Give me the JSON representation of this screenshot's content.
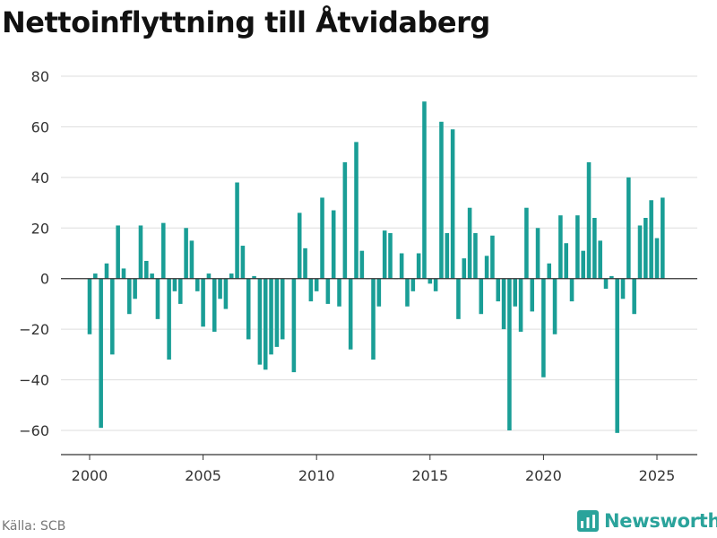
{
  "title": "Nettoinflyttning till Åtvidaberg",
  "source": "Källa: SCB",
  "brand": {
    "name": "Newsworthy",
    "icon": "bar-chart-logo-icon"
  },
  "colors": {
    "bar": "#1a9e96",
    "grid": "#dddddd",
    "zero": "#333333",
    "brand": "#2aa39b"
  },
  "chart_data": {
    "type": "bar",
    "title": "Nettoinflyttning till Åtvidaberg",
    "xlabel": "",
    "ylabel": "",
    "ylim": [
      -70,
      80
    ],
    "xlim": [
      1999.5,
      2025.75
    ],
    "y_ticks": [
      80,
      60,
      40,
      20,
      0,
      -20,
      -40,
      -60
    ],
    "y_tick_labels": [
      "80",
      "60",
      "40",
      "20",
      "0",
      "−20",
      "−40",
      "−60"
    ],
    "x_ticks": [
      2000,
      2005,
      2010,
      2015,
      2020,
      2025
    ],
    "x_tick_labels": [
      "2000",
      "2005",
      "2010",
      "2015",
      "2020",
      "2025"
    ],
    "grid": true,
    "period": "quarter",
    "start": "2000 Q1",
    "values": [
      -22,
      2,
      -59,
      6,
      -30,
      21,
      4,
      -14,
      -8,
      21,
      7,
      2,
      -16,
      22,
      -32,
      -5,
      -10,
      20,
      15,
      -5,
      -19,
      2,
      -21,
      -8,
      -12,
      2,
      38,
      13,
      -24,
      1,
      -34,
      -36,
      -30,
      -27,
      -24,
      0,
      -37,
      26,
      12,
      -9,
      -5,
      32,
      -10,
      27,
      -11,
      46,
      -28,
      54,
      11,
      0,
      -32,
      -11,
      19,
      18,
      0,
      10,
      -11,
      -5,
      10,
      70,
      -2,
      -5,
      62,
      18,
      59,
      -16,
      8,
      28,
      18,
      -14,
      9,
      17,
      -9,
      -20,
      -60,
      -11,
      -21,
      28,
      -13,
      20,
      -39,
      6,
      -22,
      25,
      14,
      -9,
      25,
      11,
      46,
      24,
      15,
      -4,
      1,
      -61,
      -8,
      40,
      -14,
      21,
      24,
      31,
      16,
      32
    ]
  }
}
